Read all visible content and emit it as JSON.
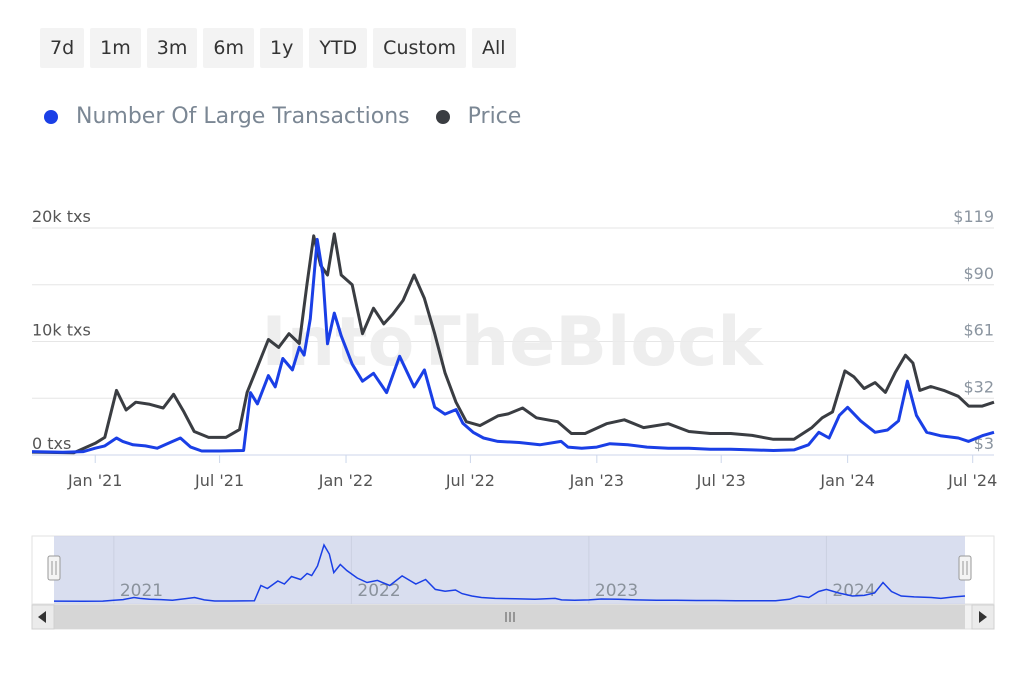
{
  "range_buttons": [
    "7d",
    "1m",
    "3m",
    "6m",
    "1y",
    "YTD",
    "Custom",
    "All"
  ],
  "watermark": "IntoTheBlock",
  "colors": {
    "txs": "#1a3fe6",
    "price": "#3a3d42",
    "grid": "#e6e6e6",
    "navigator_mask": "#ccd3ea"
  },
  "chart_data": {
    "type": "line",
    "title": "",
    "legend_position": "top-left",
    "grid": true,
    "x_ticks": [
      "Jan '21",
      "Jul '21",
      "Jan '22",
      "Jul '22",
      "Jan '23",
      "Jul '23",
      "Jan '24",
      "Jul '24"
    ],
    "y_left_ticks": [
      "0 txs",
      "10k txs",
      "20k txs"
    ],
    "y_right_ticks": [
      "$3",
      "$32",
      "$61",
      "$90",
      "$119"
    ],
    "ylim_left": [
      0,
      20000
    ],
    "ylim_right": [
      3,
      119
    ],
    "x_range": [
      "2020-10-01",
      "2024-08-01"
    ],
    "series": [
      {
        "name": "Number Of Large Transactions",
        "axis": "left",
        "color": "#1a3fe6",
        "points": [
          [
            "2020-10-01",
            300
          ],
          [
            "2020-11-15",
            250
          ],
          [
            "2020-12-15",
            300
          ],
          [
            "2021-01-01",
            600
          ],
          [
            "2021-01-15",
            800
          ],
          [
            "2021-02-01",
            1500
          ],
          [
            "2021-02-10",
            1200
          ],
          [
            "2021-02-25",
            900
          ],
          [
            "2021-03-15",
            800
          ],
          [
            "2021-04-01",
            600
          ],
          [
            "2021-04-20",
            1100
          ],
          [
            "2021-05-05",
            1500
          ],
          [
            "2021-05-20",
            700
          ],
          [
            "2021-06-05",
            350
          ],
          [
            "2021-07-01",
            350
          ],
          [
            "2021-08-05",
            400
          ],
          [
            "2021-08-15",
            5500
          ],
          [
            "2021-08-25",
            4500
          ],
          [
            "2021-09-10",
            7000
          ],
          [
            "2021-09-20",
            6000
          ],
          [
            "2021-10-01",
            8500
          ],
          [
            "2021-10-15",
            7500
          ],
          [
            "2021-10-25",
            9500
          ],
          [
            "2021-11-01",
            8800
          ],
          [
            "2021-11-10",
            12000
          ],
          [
            "2021-11-20",
            19000
          ],
          [
            "2021-11-28",
            16000
          ],
          [
            "2021-12-05",
            9800
          ],
          [
            "2021-12-15",
            12500
          ],
          [
            "2021-12-25",
            10500
          ],
          [
            "2022-01-10",
            8000
          ],
          [
            "2022-01-25",
            6500
          ],
          [
            "2022-02-10",
            7200
          ],
          [
            "2022-03-01",
            5500
          ],
          [
            "2022-03-20",
            8700
          ],
          [
            "2022-04-10",
            6000
          ],
          [
            "2022-04-25",
            7500
          ],
          [
            "2022-05-10",
            4200
          ],
          [
            "2022-05-25",
            3600
          ],
          [
            "2022-06-10",
            4000
          ],
          [
            "2022-06-20",
            2800
          ],
          [
            "2022-07-05",
            2000
          ],
          [
            "2022-07-20",
            1500
          ],
          [
            "2022-08-10",
            1200
          ],
          [
            "2022-09-10",
            1100
          ],
          [
            "2022-10-10",
            900
          ],
          [
            "2022-11-10",
            1200
          ],
          [
            "2022-11-20",
            700
          ],
          [
            "2022-12-10",
            600
          ],
          [
            "2023-01-01",
            700
          ],
          [
            "2023-01-20",
            1000
          ],
          [
            "2023-02-15",
            900
          ],
          [
            "2023-03-15",
            700
          ],
          [
            "2023-04-15",
            600
          ],
          [
            "2023-05-15",
            600
          ],
          [
            "2023-06-15",
            500
          ],
          [
            "2023-07-15",
            500
          ],
          [
            "2023-08-15",
            450
          ],
          [
            "2023-09-15",
            400
          ],
          [
            "2023-10-15",
            450
          ],
          [
            "2023-11-05",
            900
          ],
          [
            "2023-11-20",
            2000
          ],
          [
            "2023-12-05",
            1500
          ],
          [
            "2023-12-20",
            3500
          ],
          [
            "2024-01-01",
            4200
          ],
          [
            "2024-01-20",
            3000
          ],
          [
            "2024-02-10",
            2000
          ],
          [
            "2024-02-28",
            2200
          ],
          [
            "2024-03-15",
            3000
          ],
          [
            "2024-03-28",
            6500
          ],
          [
            "2024-04-10",
            3500
          ],
          [
            "2024-04-25",
            2000
          ],
          [
            "2024-05-15",
            1700
          ],
          [
            "2024-06-10",
            1500
          ],
          [
            "2024-06-25",
            1200
          ],
          [
            "2024-07-15",
            1700
          ],
          [
            "2024-08-01",
            2000
          ]
        ]
      },
      {
        "name": "Price",
        "axis": "right",
        "color": "#3a3d42",
        "points": [
          [
            "2020-10-01",
            4.5
          ],
          [
            "2020-12-01",
            4.2
          ],
          [
            "2021-01-01",
            9
          ],
          [
            "2021-01-15",
            12
          ],
          [
            "2021-02-01",
            36
          ],
          [
            "2021-02-15",
            26
          ],
          [
            "2021-03-01",
            30
          ],
          [
            "2021-03-20",
            29
          ],
          [
            "2021-04-10",
            27
          ],
          [
            "2021-04-25",
            34
          ],
          [
            "2021-05-10",
            25
          ],
          [
            "2021-05-25",
            15
          ],
          [
            "2021-06-15",
            12
          ],
          [
            "2021-07-10",
            12
          ],
          [
            "2021-07-30",
            16
          ],
          [
            "2021-08-10",
            35
          ],
          [
            "2021-08-25",
            48
          ],
          [
            "2021-09-10",
            62
          ],
          [
            "2021-09-25",
            58
          ],
          [
            "2021-10-10",
            65
          ],
          [
            "2021-10-25",
            60
          ],
          [
            "2021-11-05",
            90
          ],
          [
            "2021-11-15",
            115
          ],
          [
            "2021-11-25",
            100
          ],
          [
            "2021-12-05",
            95
          ],
          [
            "2021-12-15",
            116
          ],
          [
            "2021-12-25",
            95
          ],
          [
            "2022-01-10",
            90
          ],
          [
            "2022-01-25",
            65
          ],
          [
            "2022-02-10",
            78
          ],
          [
            "2022-02-25",
            70
          ],
          [
            "2022-03-10",
            75
          ],
          [
            "2022-03-25",
            82
          ],
          [
            "2022-04-10",
            95
          ],
          [
            "2022-04-25",
            83
          ],
          [
            "2022-05-10",
            65
          ],
          [
            "2022-05-25",
            45
          ],
          [
            "2022-06-10",
            30
          ],
          [
            "2022-06-25",
            20
          ],
          [
            "2022-07-15",
            18
          ],
          [
            "2022-08-10",
            23
          ],
          [
            "2022-08-25",
            24
          ],
          [
            "2022-09-15",
            27
          ],
          [
            "2022-10-05",
            22
          ],
          [
            "2022-11-05",
            20
          ],
          [
            "2022-11-25",
            14
          ],
          [
            "2022-12-15",
            14
          ],
          [
            "2023-01-15",
            19
          ],
          [
            "2023-02-10",
            21
          ],
          [
            "2023-03-10",
            17
          ],
          [
            "2023-04-15",
            19
          ],
          [
            "2023-05-15",
            15
          ],
          [
            "2023-06-15",
            14
          ],
          [
            "2023-07-15",
            14
          ],
          [
            "2023-08-15",
            13
          ],
          [
            "2023-09-15",
            11
          ],
          [
            "2023-10-15",
            11
          ],
          [
            "2023-11-10",
            17
          ],
          [
            "2023-11-25",
            22
          ],
          [
            "2023-12-10",
            25
          ],
          [
            "2023-12-28",
            46
          ],
          [
            "2024-01-10",
            43
          ],
          [
            "2024-01-25",
            37
          ],
          [
            "2024-02-10",
            40
          ],
          [
            "2024-02-25",
            35
          ],
          [
            "2024-03-10",
            45
          ],
          [
            "2024-03-25",
            54
          ],
          [
            "2024-04-05",
            50
          ],
          [
            "2024-04-15",
            36
          ],
          [
            "2024-05-01",
            38
          ],
          [
            "2024-05-20",
            36
          ],
          [
            "2024-06-10",
            33
          ],
          [
            "2024-06-25",
            28
          ],
          [
            "2024-07-15",
            28
          ],
          [
            "2024-08-01",
            30
          ]
        ]
      }
    ],
    "navigator": {
      "year_labels": [
        "2021",
        "2022",
        "2023",
        "2024"
      ]
    }
  }
}
